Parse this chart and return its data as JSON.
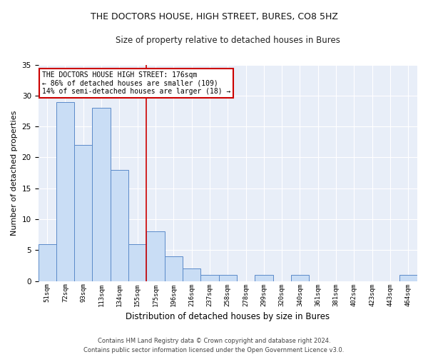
{
  "title1": "THE DOCTORS HOUSE, HIGH STREET, BURES, CO8 5HZ",
  "title2": "Size of property relative to detached houses in Bures",
  "xlabel": "Distribution of detached houses by size in Bures",
  "ylabel": "Number of detached properties",
  "categories": [
    "51sqm",
    "72sqm",
    "93sqm",
    "113sqm",
    "134sqm",
    "155sqm",
    "175sqm",
    "196sqm",
    "216sqm",
    "237sqm",
    "258sqm",
    "278sqm",
    "299sqm",
    "320sqm",
    "340sqm",
    "361sqm",
    "381sqm",
    "402sqm",
    "423sqm",
    "443sqm",
    "464sqm"
  ],
  "values": [
    6,
    29,
    22,
    28,
    18,
    6,
    8,
    4,
    2,
    1,
    1,
    0,
    1,
    0,
    1,
    0,
    0,
    0,
    0,
    0,
    1
  ],
  "bar_color": "#c9ddf5",
  "bar_edge_color": "#5b8ac9",
  "vline_x": 5.5,
  "vline_color": "#cc0000",
  "annotation_text": "THE DOCTORS HOUSE HIGH STREET: 176sqm\n← 86% of detached houses are smaller (109)\n14% of semi-detached houses are larger (18) →",
  "annotation_box_color": "#ffffff",
  "annotation_box_edge": "#cc0000",
  "ylim": [
    0,
    35
  ],
  "yticks": [
    0,
    5,
    10,
    15,
    20,
    25,
    30,
    35
  ],
  "footer1": "Contains HM Land Registry data © Crown copyright and database right 2024.",
  "footer2": "Contains public sector information licensed under the Open Government Licence v3.0.",
  "bg_color": "#e8eef8"
}
